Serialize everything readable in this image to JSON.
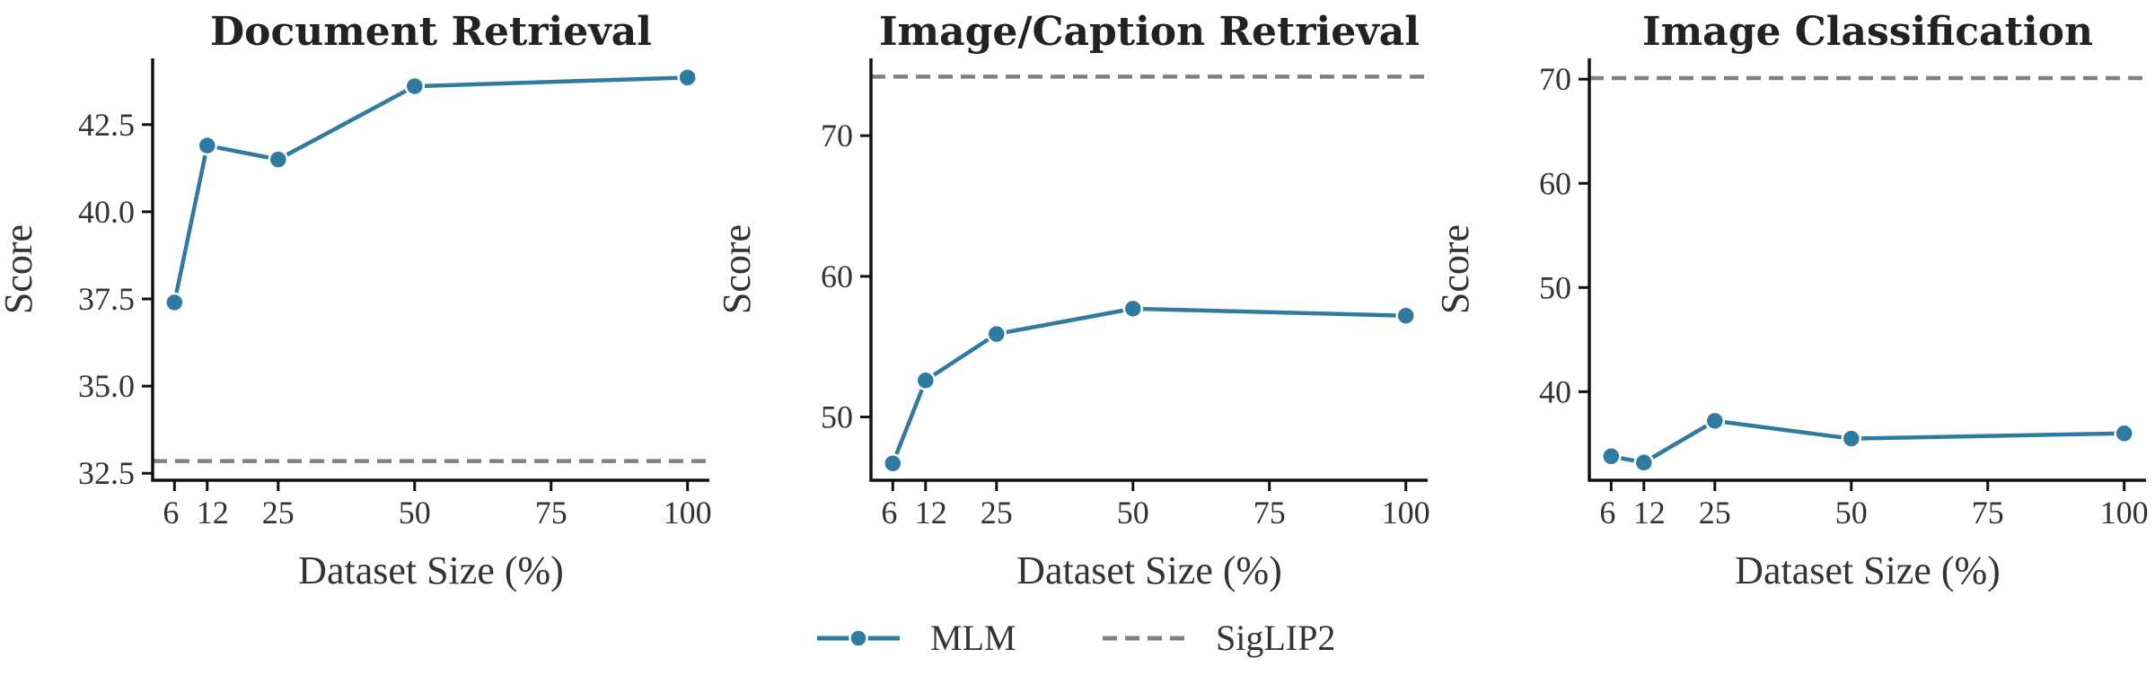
{
  "colors": {
    "mlm": "#2e7aa1",
    "siglip": "#808080",
    "axis": "#111111"
  },
  "legend": [
    {
      "label": "MLM",
      "style": "line-marker"
    },
    {
      "label": "SigLIP2",
      "style": "dashed"
    }
  ],
  "chart_data": [
    {
      "type": "line",
      "title": "Document Retrieval",
      "xlabel": "Dataset Size (%)",
      "ylabel": "Score",
      "x": [
        6,
        12,
        25,
        50,
        100
      ],
      "xticks": [
        6,
        12,
        25,
        50,
        75,
        100
      ],
      "yticks": [
        32.5,
        35.0,
        37.5,
        40.0,
        42.5
      ],
      "ytick_labels": [
        "32.5",
        "35.0",
        "37.5",
        "40.0",
        "42.5"
      ],
      "xlim": [
        2,
        104
      ],
      "ylim": [
        32.3,
        44.4
      ],
      "series": [
        {
          "name": "MLM",
          "values": [
            37.4,
            41.9,
            41.5,
            43.6,
            43.85
          ]
        }
      ],
      "baseline": {
        "name": "SigLIP2",
        "value": 32.85
      }
    },
    {
      "type": "line",
      "title": "Image/Caption Retrieval",
      "xlabel": "Dataset Size (%)",
      "ylabel": "Score",
      "x": [
        6,
        12,
        25,
        50,
        100
      ],
      "xticks": [
        6,
        12,
        25,
        50,
        75,
        100
      ],
      "yticks": [
        50,
        60,
        70
      ],
      "ytick_labels": [
        "50",
        "60",
        "70"
      ],
      "xlim": [
        2,
        104
      ],
      "ylim": [
        45.5,
        75.5
      ],
      "series": [
        {
          "name": "MLM",
          "values": [
            46.7,
            52.6,
            55.9,
            57.7,
            57.2
          ]
        }
      ],
      "baseline": {
        "name": "SigLIP2",
        "value": 74.2
      }
    },
    {
      "type": "line",
      "title": "Image Classification",
      "xlabel": "Dataset Size (%)",
      "ylabel": "Score",
      "x": [
        6,
        12,
        25,
        50,
        100
      ],
      "xticks": [
        6,
        12,
        25,
        50,
        75,
        100
      ],
      "yticks": [
        40,
        50,
        60,
        70
      ],
      "ytick_labels": [
        "40",
        "50",
        "60",
        "70"
      ],
      "xlim": [
        2,
        104
      ],
      "ylim": [
        31.5,
        72.0
      ],
      "series": [
        {
          "name": "MLM",
          "values": [
            33.8,
            33.2,
            37.2,
            35.5,
            36.0
          ]
        }
      ],
      "baseline": {
        "name": "SigLIP2",
        "value": 70.1
      }
    }
  ]
}
